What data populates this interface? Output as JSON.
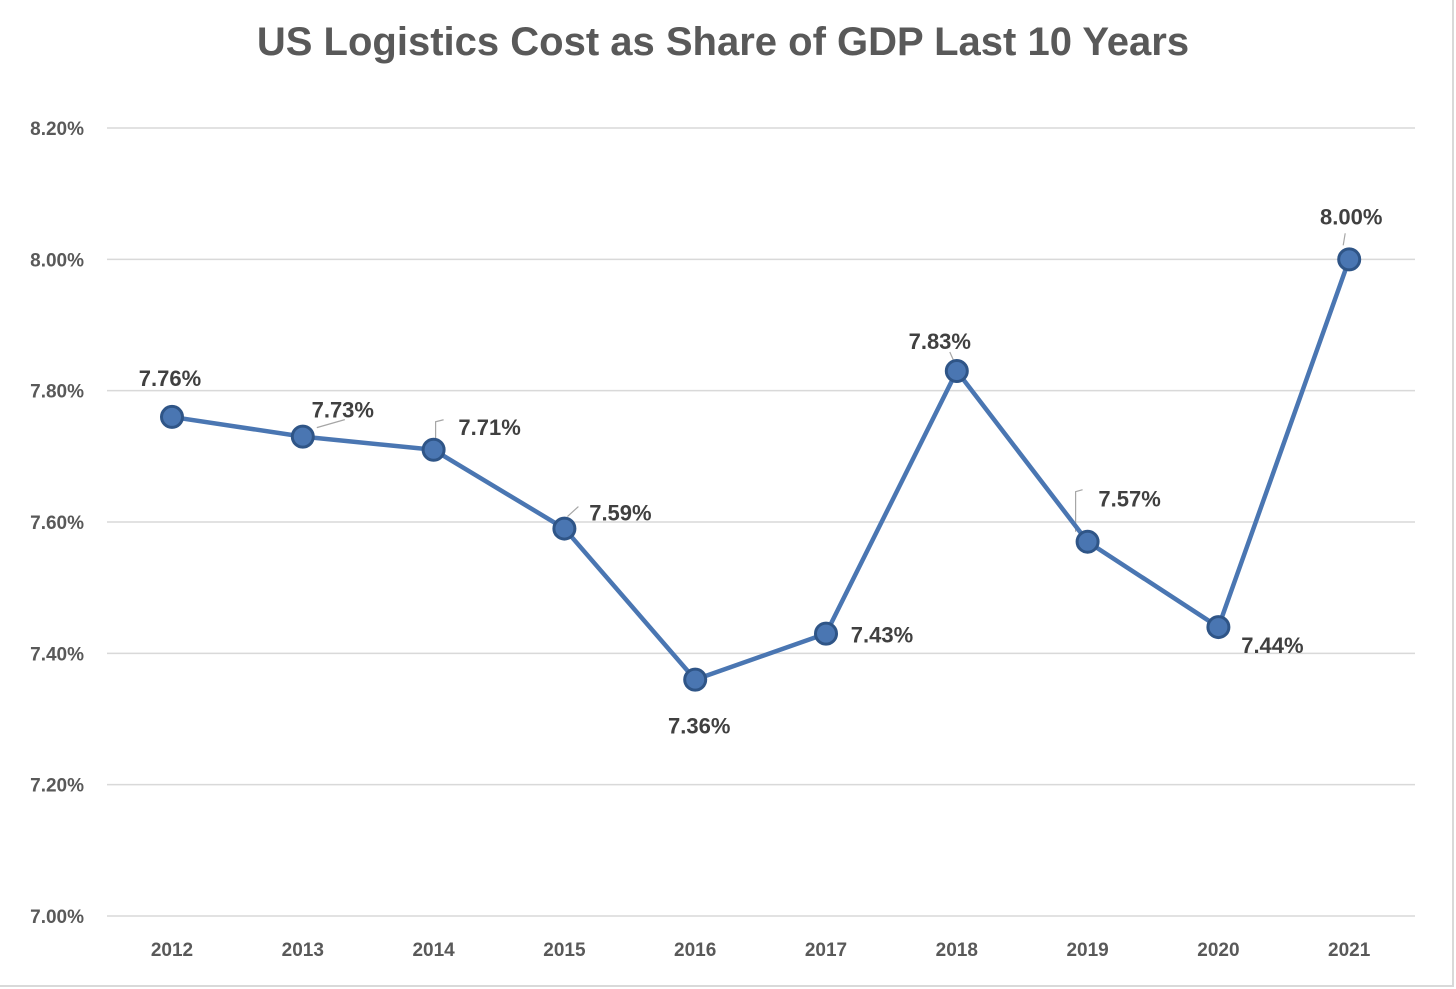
{
  "chart_data": {
    "type": "line",
    "title": "US Logistics Cost as Share of GDP Last 10 Years",
    "xlabel": "",
    "ylabel": "",
    "categories": [
      "2012",
      "2013",
      "2014",
      "2015",
      "2016",
      "2017",
      "2018",
      "2019",
      "2020",
      "2021"
    ],
    "series": [
      {
        "values": [
          7.76,
          7.73,
          7.71,
          7.59,
          7.36,
          7.43,
          7.83,
          7.57,
          7.44,
          8.0
        ],
        "data_labels": [
          "7.76%",
          "7.73%",
          "7.71%",
          "7.59%",
          "7.36%",
          "7.43%",
          "7.83%",
          "7.57%",
          "7.44%",
          "8.00%"
        ],
        "color": "#4a76b2"
      }
    ],
    "ylim": [
      7.0,
      8.2
    ],
    "y_ticks": [
      7.0,
      7.2,
      7.4,
      7.6,
      7.8,
      8.0,
      8.2
    ],
    "y_tick_labels": [
      "7.00%",
      "7.20%",
      "7.40%",
      "7.60%",
      "7.80%",
      "8.00%",
      "8.20%"
    ],
    "grid": true,
    "legend": "none",
    "marker_fill": "#4a76b2",
    "marker_edge": "#2f5587",
    "gridline_color": "#d9d9d9"
  }
}
